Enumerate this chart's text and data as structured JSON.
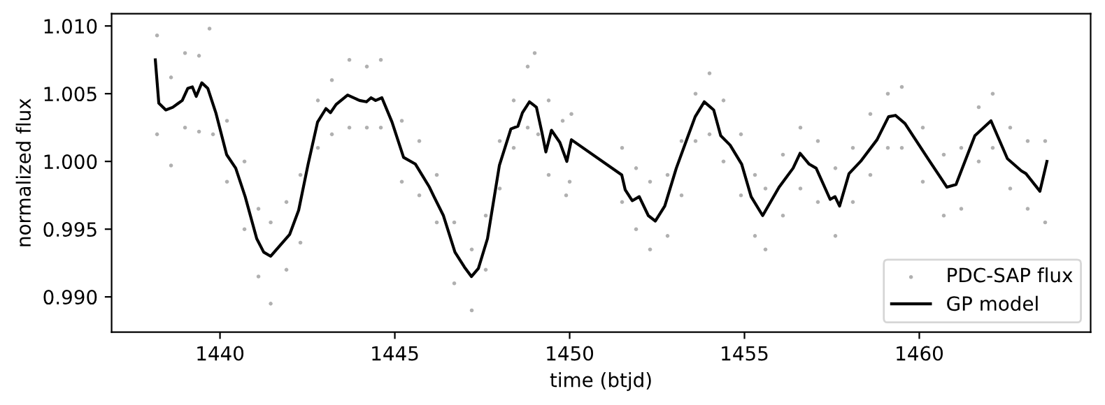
{
  "chart_data": {
    "type": "scatter",
    "xlabel": "time (btjd)",
    "ylabel": "normalized flux",
    "xlim": [
      1436.9,
      1464.9
    ],
    "ylim": [
      0.9874,
      1.0109
    ],
    "xticks": [
      1440,
      1445,
      1450,
      1455,
      1460
    ],
    "yticks": [
      {
        "value": 0.99,
        "label": "0.990"
      },
      {
        "value": 0.995,
        "label": "0.995"
      },
      {
        "value": 1.0,
        "label": "1.000"
      },
      {
        "value": 1.005,
        "label": "1.005"
      },
      {
        "value": 1.01,
        "label": "1.010"
      }
    ],
    "legend": "bottom right",
    "series": [
      {
        "name": "PDC-SAP flux",
        "marker": "circle",
        "color": "#b0b0b0",
        "x": [
          1438.2,
          1438.2,
          1438.6,
          1438.6,
          1439.0,
          1439.0,
          1439.4,
          1439.4,
          1439.7,
          1439.8,
          1440.2,
          1440.2,
          1440.7,
          1440.7,
          1441.1,
          1441.1,
          1441.45,
          1441.45,
          1441.9,
          1441.9,
          1442.3,
          1442.3,
          1442.8,
          1442.8,
          1443.2,
          1443.2,
          1443.7,
          1443.7,
          1444.2,
          1444.2,
          1444.6,
          1444.6,
          1445.2,
          1445.2,
          1445.7,
          1445.7,
          1446.2,
          1446.2,
          1446.7,
          1446.7,
          1447.2,
          1447.2,
          1447.6,
          1447.6,
          1448.0,
          1448.0,
          1448.4,
          1448.4,
          1448.8,
          1448.8,
          1449.0,
          1449.1,
          1449.4,
          1449.4,
          1449.8,
          1449.9,
          1450.05,
          1450.0,
          1451.5,
          1451.5,
          1451.9,
          1451.9,
          1452.3,
          1452.3,
          1452.8,
          1452.8,
          1453.2,
          1453.2,
          1453.6,
          1453.6,
          1454.0,
          1454.0,
          1454.4,
          1454.4,
          1454.9,
          1454.9,
          1455.3,
          1455.3,
          1455.6,
          1455.6,
          1456.1,
          1456.1,
          1456.6,
          1456.6,
          1457.1,
          1457.1,
          1457.6,
          1457.6,
          1458.1,
          1458.1,
          1458.6,
          1458.6,
          1459.1,
          1459.1,
          1459.5,
          1459.5,
          1460.1,
          1460.1,
          1460.7,
          1460.7,
          1461.2,
          1461.2,
          1461.7,
          1461.7,
          1462.1,
          1462.1,
          1462.6,
          1462.6,
          1463.1,
          1463.1,
          1463.6,
          1463.6
        ],
        "values": [
          1.0093,
          1.002,
          1.0062,
          0.9997,
          1.008,
          1.0025,
          1.0078,
          1.0022,
          1.0098,
          1.002,
          1.003,
          0.9985,
          1.0,
          0.995,
          0.9965,
          0.9915,
          0.9955,
          0.9895,
          0.997,
          0.992,
          0.999,
          0.994,
          1.0045,
          1.001,
          1.006,
          1.002,
          1.0075,
          1.0025,
          1.007,
          1.0025,
          1.0075,
          1.0025,
          1.003,
          0.9985,
          1.0015,
          0.9975,
          0.999,
          0.9955,
          0.9955,
          0.991,
          0.9935,
          0.989,
          0.996,
          0.992,
          1.0015,
          0.998,
          1.0045,
          1.001,
          1.007,
          1.0025,
          1.008,
          1.002,
          1.0045,
          0.999,
          1.003,
          0.9975,
          1.0035,
          0.9985,
          1.001,
          0.997,
          0.9995,
          0.995,
          0.9985,
          0.9935,
          0.999,
          0.9945,
          1.0015,
          0.9975,
          1.005,
          1.0015,
          1.0065,
          1.002,
          1.0045,
          1.0,
          1.002,
          0.9975,
          0.999,
          0.9945,
          0.998,
          0.9935,
          1.0005,
          0.996,
          1.0025,
          0.998,
          1.0015,
          0.997,
          0.9995,
          0.9945,
          1.001,
          0.997,
          1.0035,
          0.999,
          1.005,
          1.001,
          1.0055,
          1.001,
          1.0025,
          0.9985,
          1.0005,
          0.996,
          1.001,
          0.9965,
          1.004,
          1.0,
          1.005,
          1.001,
          1.0025,
          0.998,
          1.0015,
          0.9965,
          1.0015,
          0.9955
        ]
      },
      {
        "name": "GP model",
        "type": "line",
        "marker": "none",
        "line_style": "solid",
        "color": "#000000",
        "x": [
          1438.15,
          1438.25,
          1438.45,
          1438.65,
          1438.92,
          1439.08,
          1439.21,
          1439.32,
          1439.48,
          1439.65,
          1439.88,
          1440.19,
          1440.45,
          1440.72,
          1441.05,
          1441.25,
          1441.45,
          1441.65,
          1441.99,
          1442.25,
          1442.52,
          1442.79,
          1443.03,
          1443.16,
          1443.32,
          1443.65,
          1443.99,
          1444.19,
          1444.32,
          1444.45,
          1444.63,
          1444.92,
          1445.25,
          1445.59,
          1445.99,
          1446.12,
          1446.39,
          1446.72,
          1446.99,
          1447.19,
          1447.39,
          1447.65,
          1447.99,
          1448.32,
          1448.52,
          1448.65,
          1448.85,
          1449.05,
          1449.21,
          1449.32,
          1449.48,
          1449.72,
          1449.92,
          1450.05,
          1451.49,
          1451.59,
          1451.79,
          1451.99,
          1452.25,
          1452.45,
          1452.72,
          1453.05,
          1453.39,
          1453.59,
          1453.85,
          1454.12,
          1454.32,
          1454.59,
          1454.92,
          1455.19,
          1455.52,
          1455.99,
          1456.39,
          1456.59,
          1456.85,
          1457.05,
          1457.45,
          1457.59,
          1457.72,
          1457.99,
          1458.32,
          1458.79,
          1459.12,
          1459.32,
          1459.59,
          1460.25,
          1460.79,
          1461.05,
          1461.59,
          1462.05,
          1462.52,
          1462.92,
          1463.05,
          1463.45,
          1463.65
        ],
        "values": [
          1.0075,
          1.0043,
          1.0038,
          1.004,
          1.0045,
          1.0054,
          1.0055,
          1.0048,
          1.0058,
          1.0054,
          1.0036,
          1.0005,
          0.9995,
          0.9974,
          0.9943,
          0.9933,
          0.993,
          0.9936,
          0.9946,
          0.9964,
          0.9998,
          1.0029,
          1.0039,
          1.0036,
          1.0042,
          1.0049,
          1.0045,
          1.0044,
          1.0047,
          1.0045,
          1.0047,
          1.0029,
          1.0003,
          0.9998,
          0.9981,
          0.9974,
          0.996,
          0.9933,
          0.9922,
          0.9915,
          0.9921,
          0.9943,
          0.9997,
          1.0024,
          1.0026,
          1.0036,
          1.0044,
          1.004,
          1.0021,
          1.0007,
          1.0023,
          1.0014,
          1.0,
          1.0016,
          0.999,
          0.9979,
          0.9971,
          0.9974,
          0.996,
          0.9956,
          0.9967,
          0.9995,
          1.0019,
          1.0033,
          1.0044,
          1.0038,
          1.0019,
          1.0012,
          0.9998,
          0.9974,
          0.996,
          0.9981,
          0.9995,
          1.0006,
          0.9998,
          0.9995,
          0.9972,
          0.9974,
          0.9967,
          0.9991,
          1.0,
          1.0016,
          1.0033,
          1.0034,
          1.0028,
          1.0002,
          0.9981,
          0.9983,
          1.0019,
          1.003,
          1.0002,
          0.9993,
          0.9991,
          0.9978,
          1.0
        ]
      }
    ]
  }
}
